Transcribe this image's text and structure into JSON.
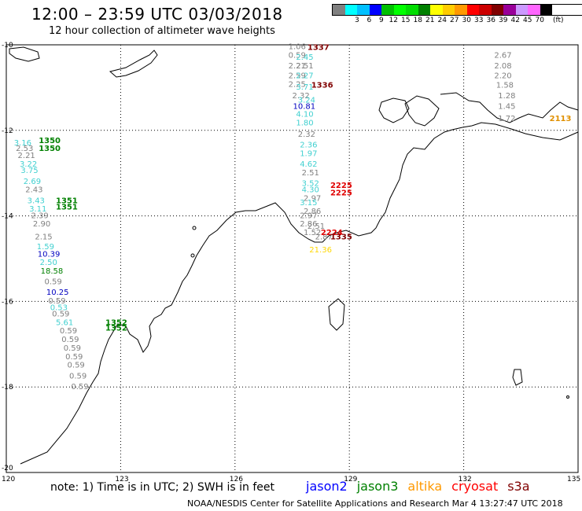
{
  "header": {
    "title": "12:00 – 23:59 UTC 03/03/2018",
    "subtitle": "12 hour collection of altimeter wave heights"
  },
  "legend": {
    "unit": "(ft)",
    "swatches": [
      {
        "label": "",
        "color": "#808080"
      },
      {
        "label": "3",
        "color": "#00ffff"
      },
      {
        "label": "6",
        "color": "#00c0ff"
      },
      {
        "label": "9",
        "color": "#0000ff"
      },
      {
        "label": "12",
        "color": "#00c000"
      },
      {
        "label": "15",
        "color": "#00ff00"
      },
      {
        "label": "18",
        "color": "#00dd00"
      },
      {
        "label": "21",
        "color": "#008000"
      },
      {
        "label": "24",
        "color": "#ffff00"
      },
      {
        "label": "27",
        "color": "#ffcc00"
      },
      {
        "label": "30",
        "color": "#ff9900"
      },
      {
        "label": "33",
        "color": "#ff0000"
      },
      {
        "label": "36",
        "color": "#cc0000"
      },
      {
        "label": "39",
        "color": "#800000"
      },
      {
        "label": "42",
        "color": "#990099"
      },
      {
        "label": "45",
        "color": "#cc99ff"
      },
      {
        "label": "70",
        "color": "#ff66ff"
      },
      {
        "label": "",
        "color": "#000000"
      }
    ]
  },
  "map": {
    "lat_ticks": [
      "-10",
      "-12",
      "-14",
      "-16",
      "-18",
      "-20"
    ],
    "lon_ticks": [
      "120",
      "123",
      "126",
      "129",
      "132",
      "135"
    ],
    "observations": [
      {
        "text": "3.16",
        "color": "#40d0d0",
        "lon": 120.2,
        "lat": -12.35
      },
      {
        "text": "2.53",
        "color": "#808080",
        "lon": 120.25,
        "lat": -12.48
      },
      {
        "text": "2.21",
        "color": "#808080",
        "lon": 120.3,
        "lat": -12.65
      },
      {
        "text": "3.22",
        "color": "#40d0d0",
        "lon": 120.35,
        "lat": -12.85
      },
      {
        "text": "3.75",
        "color": "#40d0d0",
        "lon": 120.38,
        "lat": -13.0
      },
      {
        "text": "2.69",
        "color": "#40d0d0",
        "lon": 120.45,
        "lat": -13.25
      },
      {
        "text": "2.43",
        "color": "#808080",
        "lon": 120.5,
        "lat": -13.45
      },
      {
        "text": "3.43",
        "color": "#40d0d0",
        "lon": 120.55,
        "lat": -13.7
      },
      {
        "text": "3.11",
        "color": "#40d0d0",
        "lon": 120.6,
        "lat": -13.9
      },
      {
        "text": "2.39",
        "color": "#808080",
        "lon": 120.65,
        "lat": -14.05
      },
      {
        "text": "2.90",
        "color": "#808080",
        "lon": 120.7,
        "lat": -14.25
      },
      {
        "text": "2.15",
        "color": "#808080",
        "lon": 120.75,
        "lat": -14.55
      },
      {
        "text": "1.59",
        "color": "#40d0d0",
        "lon": 120.8,
        "lat": -14.78
      },
      {
        "text": "10.39",
        "color": "#0000c0",
        "lon": 120.82,
        "lat": -14.95
      },
      {
        "text": "2.50",
        "color": "#40d0d0",
        "lon": 120.88,
        "lat": -15.15
      },
      {
        "text": "18.58",
        "color": "#008000",
        "lon": 120.9,
        "lat": -15.35
      },
      {
        "text": "0.59",
        "color": "#808080",
        "lon": 121.0,
        "lat": -15.6
      },
      {
        "text": "10.25",
        "color": "#0000c0",
        "lon": 121.05,
        "lat": -15.85
      },
      {
        "text": "0.59",
        "color": "#808080",
        "lon": 121.1,
        "lat": -16.05
      },
      {
        "text": "0.53",
        "color": "#40d0d0",
        "lon": 121.15,
        "lat": -16.2
      },
      {
        "text": "0.59",
        "color": "#808080",
        "lon": 121.2,
        "lat": -16.35
      },
      {
        "text": "5.61",
        "color": "#40d0d0",
        "lon": 121.3,
        "lat": -16.55
      },
      {
        "text": "0.59",
        "color": "#808080",
        "lon": 121.4,
        "lat": -16.75
      },
      {
        "text": "0.59",
        "color": "#808080",
        "lon": 121.45,
        "lat": -16.95
      },
      {
        "text": "0.59",
        "color": "#808080",
        "lon": 121.5,
        "lat": -17.15
      },
      {
        "text": "0.59",
        "color": "#808080",
        "lon": 121.55,
        "lat": -17.35
      },
      {
        "text": "0.59",
        "color": "#808080",
        "lon": 121.6,
        "lat": -17.55
      },
      {
        "text": "0.59",
        "color": "#808080",
        "lon": 121.65,
        "lat": -17.8
      },
      {
        "text": "0.59",
        "color": "#808080",
        "lon": 121.7,
        "lat": -18.05
      },
      {
        "text": "1350",
        "color": "#008000",
        "lon": 120.85,
        "lat": -12.3,
        "size": 12
      },
      {
        "text": "1350",
        "color": "#008000",
        "lon": 120.85,
        "lat": -12.48,
        "size": 12
      },
      {
        "text": "1351",
        "color": "#008000",
        "lon": 121.3,
        "lat": -13.7,
        "size": 12
      },
      {
        "text": "1351",
        "color": "#008000",
        "lon": 121.3,
        "lat": -13.85,
        "size": 12
      },
      {
        "text": "1352",
        "color": "#008000",
        "lon": 122.6,
        "lat": -16.55,
        "size": 12
      },
      {
        "text": "1352",
        "color": "#008000",
        "lon": 122.6,
        "lat": -16.68,
        "size": 12
      },
      {
        "text": "1.06",
        "color": "#808080",
        "lon": 127.4,
        "lat": -10.1
      },
      {
        "text": "0.59",
        "color": "#808080",
        "lon": 127.4,
        "lat": -10.3
      },
      {
        "text": "2.45",
        "color": "#40d0d0",
        "lon": 127.6,
        "lat": -10.35
      },
      {
        "text": "2.21",
        "color": "#808080",
        "lon": 127.4,
        "lat": -10.55
      },
      {
        "text": "2.51",
        "color": "#808080",
        "lon": 127.6,
        "lat": -10.55
      },
      {
        "text": "2.59",
        "color": "#808080",
        "lon": 127.4,
        "lat": -10.78
      },
      {
        "text": "2.27",
        "color": "#40d0d0",
        "lon": 127.6,
        "lat": -10.78
      },
      {
        "text": "2.25",
        "color": "#808080",
        "lon": 127.4,
        "lat": -10.98
      },
      {
        "text": "3.71",
        "color": "#40d0d0",
        "lon": 127.6,
        "lat": -11.05
      },
      {
        "text": "2.32",
        "color": "#808080",
        "lon": 127.5,
        "lat": -11.25
      },
      {
        "text": "3.24",
        "color": "#40d0d0",
        "lon": 127.65,
        "lat": -11.35
      },
      {
        "text": "10.81",
        "color": "#0000c0",
        "lon": 127.52,
        "lat": -11.5
      },
      {
        "text": "4.10",
        "color": "#40d0d0",
        "lon": 127.6,
        "lat": -11.68
      },
      {
        "text": "1.80",
        "color": "#40d0d0",
        "lon": 127.6,
        "lat": -11.88
      },
      {
        "text": "2.32",
        "color": "#808080",
        "lon": 127.65,
        "lat": -12.15
      },
      {
        "text": "2.36",
        "color": "#40d0d0",
        "lon": 127.7,
        "lat": -12.4
      },
      {
        "text": "1.97",
        "color": "#40d0d0",
        "lon": 127.7,
        "lat": -12.6
      },
      {
        "text": "4.62",
        "color": "#40d0d0",
        "lon": 127.7,
        "lat": -12.85
      },
      {
        "text": "2.51",
        "color": "#808080",
        "lon": 127.75,
        "lat": -13.05
      },
      {
        "text": "3.52",
        "color": "#40d0d0",
        "lon": 127.75,
        "lat": -13.3
      },
      {
        "text": "4.30",
        "color": "#40d0d0",
        "lon": 127.75,
        "lat": -13.45
      },
      {
        "text": "2.97",
        "color": "#808080",
        "lon": 127.8,
        "lat": -13.65
      },
      {
        "text": "3.15",
        "color": "#40d0d0",
        "lon": 127.7,
        "lat": -13.75
      },
      {
        "text": "2.86",
        "color": "#808080",
        "lon": 127.8,
        "lat": -13.95
      },
      {
        "text": "2.97",
        "color": "#808080",
        "lon": 127.7,
        "lat": -14.05
      },
      {
        "text": "2.86",
        "color": "#808080",
        "lon": 127.7,
        "lat": -14.25
      },
      {
        "text": "2.51",
        "color": "#808080",
        "lon": 127.9,
        "lat": -14.3
      },
      {
        "text": "1.52",
        "color": "#808080",
        "lon": 127.8,
        "lat": -14.45
      },
      {
        "text": "2.87",
        "color": "#808080",
        "lon": 128.1,
        "lat": -14.55
      },
      {
        "text": "1337",
        "color": "#800000",
        "lon": 127.9,
        "lat": -10.12,
        "size": 12
      },
      {
        "text": "1336",
        "color": "#800000",
        "lon": 128.0,
        "lat": -11.0,
        "size": 12
      },
      {
        "text": "2225",
        "color": "#e00000",
        "lon": 128.5,
        "lat": -13.35,
        "size": 12
      },
      {
        "text": "2225",
        "color": "#e00000",
        "lon": 128.5,
        "lat": -13.52,
        "size": 12
      },
      {
        "text": "2224",
        "color": "#e00000",
        "lon": 128.25,
        "lat": -14.45,
        "size": 12
      },
      {
        "text": "1335",
        "color": "#800000",
        "lon": 128.5,
        "lat": -14.55,
        "size": 12
      },
      {
        "text": "21.36",
        "color": "#ffd700",
        "lon": 127.95,
        "lat": -14.85
      },
      {
        "text": "2.67",
        "color": "#808080",
        "lon": 132.8,
        "lat": -10.3
      },
      {
        "text": "2.08",
        "color": "#808080",
        "lon": 132.8,
        "lat": -10.55
      },
      {
        "text": "2.20",
        "color": "#808080",
        "lon": 132.8,
        "lat": -10.78
      },
      {
        "text": "1.58",
        "color": "#808080",
        "lon": 132.85,
        "lat": -11.0
      },
      {
        "text": "1.28",
        "color": "#808080",
        "lon": 132.9,
        "lat": -11.25
      },
      {
        "text": "1.45",
        "color": "#808080",
        "lon": 132.9,
        "lat": -11.5
      },
      {
        "text": "1.72",
        "color": "#808080",
        "lon": 132.9,
        "lat": -11.78
      },
      {
        "text": "2113",
        "color": "#e09000",
        "lon": 134.25,
        "lat": -11.78,
        "size": 12
      }
    ]
  },
  "footer": {
    "note": "note:  1) Time is in UTC;  2) SWH is in feet",
    "satellites": [
      {
        "label": "jason2",
        "color": "#0000ff"
      },
      {
        "label": "jason3",
        "color": "#008000"
      },
      {
        "label": "altika",
        "color": "#ff9900"
      },
      {
        "label": "cryosat",
        "color": "#ff0000"
      },
      {
        "label": "s3a",
        "color": "#800000"
      }
    ],
    "credit": "NOAA/NESDIS Center for Satellite Applications and Research     Mar  4 13:27:47 UTC 2018"
  }
}
